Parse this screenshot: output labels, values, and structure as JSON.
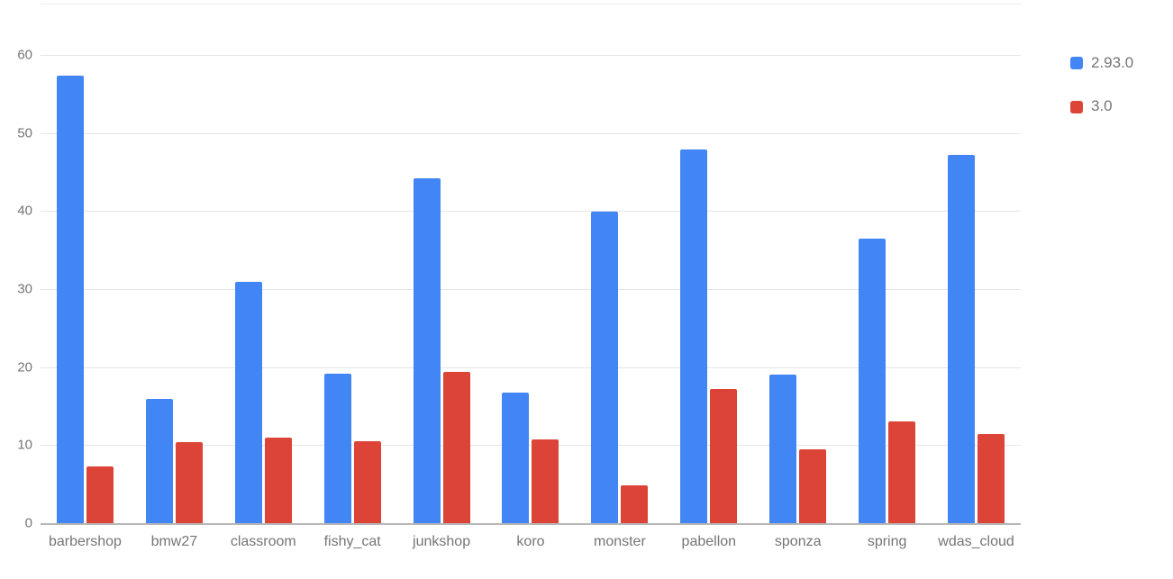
{
  "chart_data": {
    "type": "bar",
    "title": "",
    "xlabel": "",
    "ylabel": "",
    "categories": [
      "barbershop",
      "bmw27",
      "classroom",
      "fishy_cat",
      "junkshop",
      "koro",
      "monster",
      "pabellon",
      "sponza",
      "spring",
      "wdas_cloud"
    ],
    "series": [
      {
        "name": "2.93.0",
        "color": "#4285F4",
        "values": [
          57.5,
          16.0,
          31.0,
          19.3,
          44.3,
          16.9,
          40.0,
          48.0,
          19.2,
          36.6,
          47.3
        ]
      },
      {
        "name": "3.0",
        "color": "#DB4437",
        "values": [
          7.4,
          10.5,
          11.1,
          10.6,
          19.5,
          10.8,
          5.0,
          17.3,
          9.6,
          13.2,
          11.6
        ]
      }
    ],
    "yticks": [
      0,
      10,
      20,
      30,
      40,
      50,
      60
    ],
    "ylim": [
      0,
      66.6
    ],
    "grid": true,
    "legend_position": "right",
    "colors": {
      "gridline": "#e6e6e6",
      "axis_line": "#b7b7b7",
      "tick_text": "#757575",
      "legend_text": "#757575",
      "background": "#ffffff"
    }
  }
}
